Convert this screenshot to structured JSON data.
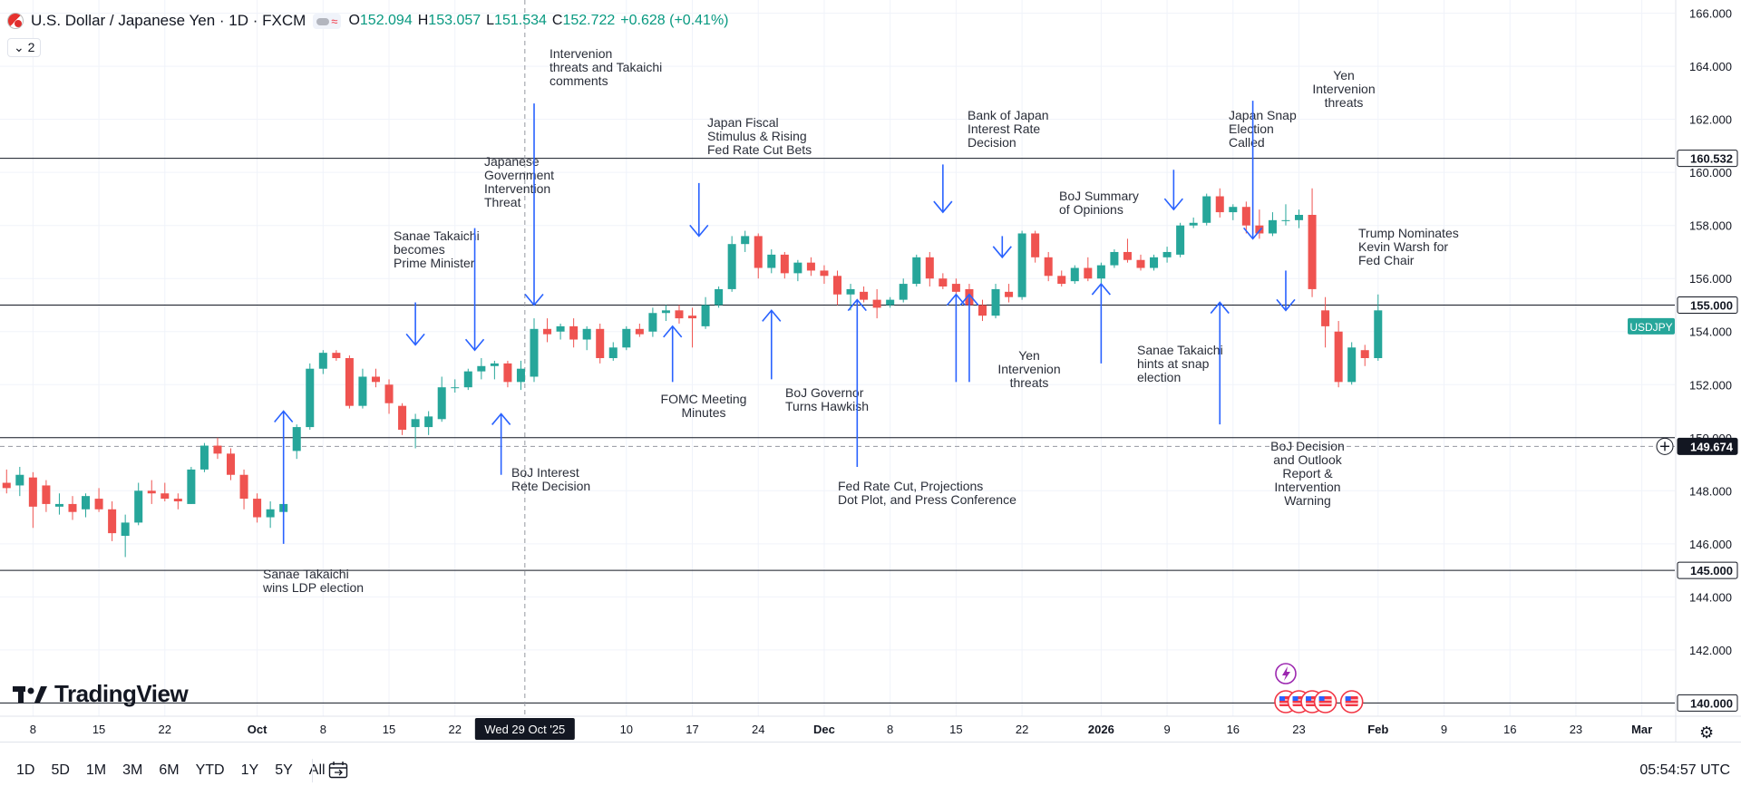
{
  "header": {
    "symbol_title": "U.S. Dollar / Japanese Yen · 1D · FXCM",
    "open_label": "O",
    "open_value": "152.094",
    "high_label": "H",
    "high_value": "153.057",
    "low_label": "L",
    "low_value": "151.534",
    "close_label": "C",
    "close_value": "152.722",
    "change": "+0.628 (+0.41%)",
    "legend_count": "2",
    "flag_icon": "us-flag-icon",
    "wave_glyph": "≈"
  },
  "logo": {
    "text": "TradingView"
  },
  "toolbar": {
    "ranges": [
      "1D",
      "5D",
      "1M",
      "3M",
      "6M",
      "YTD",
      "1Y",
      "5Y",
      "All"
    ],
    "clock": "05:54:57 UTC",
    "calendar_icon": "calendar-icon",
    "settings_icon": "settings-icon"
  },
  "colors": {
    "up": "#26a69a",
    "down": "#ef5350",
    "annotation": "#2962ff",
    "hline": "#131722",
    "grid": "#f0f3fa",
    "badge_last": "#26a69a",
    "badge_dark": "#131722"
  },
  "chart_data": {
    "type": "candlestick",
    "symbol": "USDJPY",
    "x_ticks": [
      {
        "label": "8",
        "i": 2
      },
      {
        "label": "15",
        "i": 7
      },
      {
        "label": "22",
        "i": 12
      },
      {
        "label": "Oct",
        "i": 19
      },
      {
        "label": "8",
        "i": 24
      },
      {
        "label": "15",
        "i": 29
      },
      {
        "label": "22",
        "i": 34
      },
      {
        "label": "10",
        "i": 47
      },
      {
        "label": "17",
        "i": 52
      },
      {
        "label": "24",
        "i": 57
      },
      {
        "label": "Dec",
        "i": 62
      },
      {
        "label": "8",
        "i": 67
      },
      {
        "label": "15",
        "i": 72
      },
      {
        "label": "22",
        "i": 77
      },
      {
        "label": "2026",
        "i": 83
      },
      {
        "label": "9",
        "i": 88
      },
      {
        "label": "16",
        "i": 93
      },
      {
        "label": "23",
        "i": 98
      },
      {
        "label": "Feb",
        "i": 104
      },
      {
        "label": "9",
        "i": 109
      },
      {
        "label": "16",
        "i": 114
      },
      {
        "label": "23",
        "i": 119
      },
      {
        "label": "Mar",
        "i": 124
      }
    ],
    "crosshair": {
      "i": 39.3,
      "label": "Wed 29 Oct '25",
      "price": 149.674
    },
    "y_ticks": [
      142,
      144,
      146,
      148,
      150,
      152,
      154,
      156,
      158,
      160,
      162,
      164,
      166
    ],
    "ylim": [
      139.5,
      166.5
    ],
    "xlim": [
      -0.5,
      126.5
    ],
    "horizontal_lines": [
      160.532,
      155.0,
      150.0,
      145.0,
      140.0
    ],
    "price_labels": [
      {
        "value": 160.532,
        "text": "160.532",
        "style": "line"
      },
      {
        "value": 155.0,
        "text": "155.000",
        "style": "line"
      },
      {
        "value": 145.0,
        "text": "145.000",
        "style": "line"
      },
      {
        "value": 140.0,
        "text": "140.000",
        "style": "line"
      },
      {
        "value": 149.674,
        "text": "149.674",
        "style": "dark"
      }
    ],
    "symbol_badge": {
      "text": "USDJPY",
      "value": 154.2
    },
    "candles": [
      {
        "o": 148.3,
        "h": 148.8,
        "l": 147.9,
        "c": 148.1
      },
      {
        "o": 148.2,
        "h": 148.9,
        "l": 147.8,
        "c": 148.6
      },
      {
        "o": 148.5,
        "h": 148.7,
        "l": 146.6,
        "c": 147.4
      },
      {
        "o": 148.2,
        "h": 148.4,
        "l": 147.2,
        "c": 147.5
      },
      {
        "o": 147.4,
        "h": 147.9,
        "l": 147.1,
        "c": 147.5
      },
      {
        "o": 147.5,
        "h": 147.8,
        "l": 146.9,
        "c": 147.2
      },
      {
        "o": 147.3,
        "h": 147.9,
        "l": 147.0,
        "c": 147.8
      },
      {
        "o": 147.7,
        "h": 148.1,
        "l": 147.2,
        "c": 147.3
      },
      {
        "o": 147.3,
        "h": 147.6,
        "l": 146.1,
        "c": 146.4
      },
      {
        "o": 146.3,
        "h": 147.1,
        "l": 145.5,
        "c": 146.8
      },
      {
        "o": 146.8,
        "h": 148.3,
        "l": 146.7,
        "c": 148.0
      },
      {
        "o": 148.0,
        "h": 148.4,
        "l": 147.5,
        "c": 147.9
      },
      {
        "o": 147.9,
        "h": 148.3,
        "l": 147.6,
        "c": 147.7
      },
      {
        "o": 147.7,
        "h": 147.9,
        "l": 147.3,
        "c": 147.6
      },
      {
        "o": 147.5,
        "h": 148.9,
        "l": 147.5,
        "c": 148.8
      },
      {
        "o": 148.8,
        "h": 149.8,
        "l": 148.7,
        "c": 149.7
      },
      {
        "o": 149.7,
        "h": 150.0,
        "l": 149.2,
        "c": 149.4
      },
      {
        "o": 149.4,
        "h": 149.6,
        "l": 148.4,
        "c": 148.6
      },
      {
        "o": 148.6,
        "h": 148.8,
        "l": 147.3,
        "c": 147.7
      },
      {
        "o": 147.7,
        "h": 147.9,
        "l": 146.8,
        "c": 147.0
      },
      {
        "o": 147.0,
        "h": 147.6,
        "l": 146.6,
        "c": 147.3
      },
      {
        "o": 147.2,
        "h": 147.9,
        "l": 147.0,
        "c": 147.5
      },
      {
        "o": 149.5,
        "h": 150.5,
        "l": 149.2,
        "c": 150.4
      },
      {
        "o": 150.4,
        "h": 152.8,
        "l": 150.3,
        "c": 152.6
      },
      {
        "o": 152.6,
        "h": 153.3,
        "l": 152.4,
        "c": 153.2
      },
      {
        "o": 153.2,
        "h": 153.3,
        "l": 152.9,
        "c": 153.0
      },
      {
        "o": 153.0,
        "h": 153.1,
        "l": 151.1,
        "c": 151.2
      },
      {
        "o": 151.2,
        "h": 152.6,
        "l": 151.1,
        "c": 152.3
      },
      {
        "o": 152.3,
        "h": 152.6,
        "l": 151.9,
        "c": 152.1
      },
      {
        "o": 152.0,
        "h": 152.2,
        "l": 150.9,
        "c": 151.3
      },
      {
        "o": 151.2,
        "h": 151.3,
        "l": 150.1,
        "c": 150.3
      },
      {
        "o": 150.4,
        "h": 150.9,
        "l": 149.6,
        "c": 150.7
      },
      {
        "o": 150.4,
        "h": 151.0,
        "l": 150.1,
        "c": 150.8
      },
      {
        "o": 150.7,
        "h": 152.3,
        "l": 150.6,
        "c": 151.9
      },
      {
        "o": 151.9,
        "h": 152.2,
        "l": 151.7,
        "c": 151.9
      },
      {
        "o": 151.9,
        "h": 152.6,
        "l": 151.8,
        "c": 152.5
      },
      {
        "o": 152.5,
        "h": 153.0,
        "l": 152.2,
        "c": 152.7
      },
      {
        "o": 152.7,
        "h": 152.9,
        "l": 152.2,
        "c": 152.8
      },
      {
        "o": 152.8,
        "h": 152.9,
        "l": 151.9,
        "c": 152.1
      },
      {
        "o": 152.1,
        "h": 152.9,
        "l": 151.8,
        "c": 152.6
      },
      {
        "o": 152.3,
        "h": 154.5,
        "l": 152.1,
        "c": 154.1
      },
      {
        "o": 154.1,
        "h": 154.5,
        "l": 153.6,
        "c": 153.9
      },
      {
        "o": 154.0,
        "h": 154.3,
        "l": 153.7,
        "c": 154.2
      },
      {
        "o": 154.2,
        "h": 154.5,
        "l": 153.4,
        "c": 153.7
      },
      {
        "o": 153.7,
        "h": 154.2,
        "l": 153.3,
        "c": 154.1
      },
      {
        "o": 154.1,
        "h": 154.3,
        "l": 152.8,
        "c": 153.0
      },
      {
        "o": 153.0,
        "h": 153.6,
        "l": 152.9,
        "c": 153.4
      },
      {
        "o": 153.4,
        "h": 154.2,
        "l": 153.3,
        "c": 154.1
      },
      {
        "o": 154.1,
        "h": 154.3,
        "l": 153.8,
        "c": 153.9
      },
      {
        "o": 154.0,
        "h": 154.9,
        "l": 153.8,
        "c": 154.7
      },
      {
        "o": 154.7,
        "h": 155.0,
        "l": 154.4,
        "c": 154.8
      },
      {
        "o": 154.8,
        "h": 155.0,
        "l": 154.3,
        "c": 154.5
      },
      {
        "o": 154.6,
        "h": 154.9,
        "l": 153.4,
        "c": 154.5
      },
      {
        "o": 154.2,
        "h": 155.3,
        "l": 154.1,
        "c": 155.0
      },
      {
        "o": 155.0,
        "h": 155.7,
        "l": 154.9,
        "c": 155.6
      },
      {
        "o": 155.6,
        "h": 157.6,
        "l": 155.5,
        "c": 157.3
      },
      {
        "o": 157.3,
        "h": 157.8,
        "l": 157.0,
        "c": 157.6
      },
      {
        "o": 157.6,
        "h": 157.7,
        "l": 156.0,
        "c": 156.4
      },
      {
        "o": 156.4,
        "h": 157.1,
        "l": 156.2,
        "c": 156.9
      },
      {
        "o": 156.9,
        "h": 157.0,
        "l": 156.0,
        "c": 156.2
      },
      {
        "o": 156.2,
        "h": 156.7,
        "l": 155.9,
        "c": 156.6
      },
      {
        "o": 156.6,
        "h": 156.8,
        "l": 156.1,
        "c": 156.3
      },
      {
        "o": 156.3,
        "h": 156.5,
        "l": 155.8,
        "c": 156.1
      },
      {
        "o": 156.1,
        "h": 156.3,
        "l": 155.0,
        "c": 155.4
      },
      {
        "o": 155.4,
        "h": 155.8,
        "l": 154.8,
        "c": 155.6
      },
      {
        "o": 155.5,
        "h": 155.7,
        "l": 155.1,
        "c": 155.2
      },
      {
        "o": 155.2,
        "h": 155.6,
        "l": 154.5,
        "c": 154.9
      },
      {
        "o": 155.0,
        "h": 155.3,
        "l": 154.9,
        "c": 155.2
      },
      {
        "o": 155.2,
        "h": 156.0,
        "l": 155.1,
        "c": 155.8
      },
      {
        "o": 155.8,
        "h": 156.9,
        "l": 155.7,
        "c": 156.8
      },
      {
        "o": 156.8,
        "h": 157.0,
        "l": 155.7,
        "c": 156.0
      },
      {
        "o": 156.0,
        "h": 156.2,
        "l": 155.6,
        "c": 155.7
      },
      {
        "o": 155.8,
        "h": 156.0,
        "l": 155.4,
        "c": 155.5
      },
      {
        "o": 155.6,
        "h": 155.8,
        "l": 154.8,
        "c": 155.0
      },
      {
        "o": 155.0,
        "h": 155.2,
        "l": 154.4,
        "c": 154.6
      },
      {
        "o": 154.6,
        "h": 155.8,
        "l": 154.5,
        "c": 155.6
      },
      {
        "o": 155.5,
        "h": 155.8,
        "l": 155.1,
        "c": 155.3
      },
      {
        "o": 155.3,
        "h": 157.8,
        "l": 155.2,
        "c": 157.7
      },
      {
        "o": 157.7,
        "h": 157.8,
        "l": 156.6,
        "c": 156.8
      },
      {
        "o": 156.8,
        "h": 157.0,
        "l": 155.9,
        "c": 156.1
      },
      {
        "o": 156.1,
        "h": 156.3,
        "l": 155.7,
        "c": 155.8
      },
      {
        "o": 155.9,
        "h": 156.5,
        "l": 155.8,
        "c": 156.4
      },
      {
        "o": 156.4,
        "h": 156.8,
        "l": 155.9,
        "c": 156.0
      },
      {
        "o": 156.0,
        "h": 156.6,
        "l": 155.7,
        "c": 156.5
      },
      {
        "o": 156.5,
        "h": 157.1,
        "l": 156.4,
        "c": 157.0
      },
      {
        "o": 157.0,
        "h": 157.5,
        "l": 156.6,
        "c": 156.7
      },
      {
        "o": 156.7,
        "h": 156.9,
        "l": 156.3,
        "c": 156.4
      },
      {
        "o": 156.4,
        "h": 156.9,
        "l": 156.3,
        "c": 156.8
      },
      {
        "o": 156.8,
        "h": 157.2,
        "l": 156.6,
        "c": 157.0
      },
      {
        "o": 156.9,
        "h": 158.1,
        "l": 156.8,
        "c": 158.0
      },
      {
        "o": 158.0,
        "h": 158.3,
        "l": 157.9,
        "c": 158.1
      },
      {
        "o": 158.1,
        "h": 159.2,
        "l": 158.0,
        "c": 159.1
      },
      {
        "o": 159.1,
        "h": 159.4,
        "l": 158.3,
        "c": 158.5
      },
      {
        "o": 158.5,
        "h": 158.8,
        "l": 158.2,
        "c": 158.7
      },
      {
        "o": 158.7,
        "h": 158.9,
        "l": 157.7,
        "c": 158.0
      },
      {
        "o": 158.0,
        "h": 158.6,
        "l": 157.5,
        "c": 157.7
      },
      {
        "o": 157.7,
        "h": 158.5,
        "l": 157.6,
        "c": 158.2
      },
      {
        "o": 158.2,
        "h": 158.8,
        "l": 158.0,
        "c": 158.2
      },
      {
        "o": 158.2,
        "h": 158.6,
        "l": 157.9,
        "c": 158.4
      },
      {
        "o": 158.4,
        "h": 159.4,
        "l": 155.3,
        "c": 155.6
      },
      {
        "o": 154.8,
        "h": 155.3,
        "l": 153.4,
        "c": 154.2
      },
      {
        "o": 154.0,
        "h": 154.4,
        "l": 151.9,
        "c": 152.1
      },
      {
        "o": 152.1,
        "h": 153.6,
        "l": 152.0,
        "c": 153.4
      },
      {
        "o": 153.3,
        "h": 153.5,
        "l": 152.7,
        "c": 153.0
      },
      {
        "o": 153.0,
        "h": 155.4,
        "l": 152.9,
        "c": 154.8
      }
    ],
    "annotations": [
      {
        "i": 21,
        "tip": 151.0,
        "tail": 146.0,
        "dir": "up",
        "lines": [
          "Sanae Takaichi",
          "wins LDP election"
        ],
        "lx": 290,
        "ly": 638,
        "align": "start"
      },
      {
        "i": 31,
        "tip": 153.5,
        "tail": 155.1,
        "dir": "down",
        "lines": [
          "Sanae Takaichi",
          "becomes",
          "Prime Minister"
        ],
        "lx": 434,
        "ly": 265,
        "align": "start"
      },
      {
        "i": 35.5,
        "tip": 153.3,
        "tail": 157.9,
        "dir": "down",
        "lines": [
          "Japanese",
          "Government",
          "Intervention",
          "Threat"
        ],
        "lx": 534,
        "ly": 183,
        "align": "start"
      },
      {
        "i": 37.5,
        "tip": 150.9,
        "tail": 148.6,
        "dir": "up",
        "lines": [
          "BoJ Interest",
          "Rete Decision"
        ],
        "lx": 564,
        "ly": 526,
        "align": "start"
      },
      {
        "i": 40,
        "tip": 155.0,
        "tail": 162.6,
        "dir": "down",
        "lines": [
          "Intervenion",
          "threats and Takaichi",
          "comments"
        ],
        "lx": 606,
        "ly": 64,
        "align": "start"
      },
      {
        "i": 50.5,
        "tip": 154.2,
        "tail": 152.1,
        "dir": "up",
        "lines": [
          "FOMC Meeting",
          "Minutes"
        ],
        "lx": 776,
        "ly": 445,
        "align": "middle"
      },
      {
        "i": 52.5,
        "tip": 157.6,
        "tail": 159.6,
        "dir": "down",
        "lines": [
          "Japan Fiscal",
          "Stimulus & Rising",
          "Fed Rate Cut Bets"
        ],
        "lx": 780,
        "ly": 140,
        "align": "start"
      },
      {
        "i": 58,
        "tip": 154.8,
        "tail": 152.2,
        "dir": "up",
        "lines": [
          "BoJ Governor",
          "Turns Hawkish"
        ],
        "lx": 866,
        "ly": 438,
        "align": "start"
      },
      {
        "i": 64.5,
        "tip": 155.2,
        "tail": 148.9,
        "dir": "up",
        "lines": [
          "Fed Rate Cut, Projections",
          "Dot Plot, and Press Conference"
        ],
        "lx": 924,
        "ly": 541,
        "align": "start"
      },
      {
        "i": 71,
        "tip": 158.5,
        "tail": 160.3,
        "dir": "down",
        "lines": [
          "Bank of Japan",
          "Interest Rate",
          "Decision"
        ],
        "lx": 1067,
        "ly": 132,
        "align": "start"
      },
      {
        "i": 72,
        "tip": 155.4,
        "tail": 152.1,
        "dir": "up",
        "lines": [],
        "lx": 0,
        "ly": 0,
        "align": "start"
      },
      {
        "i": 73,
        "tip": 155.4,
        "tail": 152.1,
        "dir": "up",
        "lines": [
          "Yen",
          "Intervenion",
          "threats"
        ],
        "lx": 1135,
        "ly": 397,
        "align": "middle"
      },
      {
        "i": 75.5,
        "tip": 156.8,
        "tail": 157.6,
        "dir": "down",
        "lines": [
          "BoJ Summary",
          "of Opinions"
        ],
        "lx": 1168,
        "ly": 221,
        "align": "start"
      },
      {
        "i": 83,
        "tip": 155.8,
        "tail": 152.8,
        "dir": "up",
        "lines": [
          "Sanae Takaichi",
          "hints at snap",
          "election"
        ],
        "lx": 1254,
        "ly": 391,
        "align": "start"
      },
      {
        "i": 88.5,
        "tip": 158.6,
        "tail": 160.1,
        "dir": "down",
        "lines": [
          "Japan Snap",
          "Election",
          "Called"
        ],
        "lx": 1355,
        "ly": 132,
        "align": "start"
      },
      {
        "i": 92,
        "tip": 155.1,
        "tail": 150.5,
        "dir": "up",
        "lines": [
          "BoJ Decision",
          "and Outlook",
          "Report &",
          "Intervention",
          "Warning"
        ],
        "lx": 1442,
        "ly": 497,
        "align": "middle"
      },
      {
        "i": 94.5,
        "tip": 157.5,
        "tail": 162.7,
        "dir": "down",
        "lines": [
          "Yen",
          "Intervenion",
          "threats"
        ],
        "lx": 1482,
        "ly": 88,
        "align": "middle"
      },
      {
        "i": 97,
        "tip": 154.8,
        "tail": 156.3,
        "dir": "down",
        "lines": [
          "Trump Nominates",
          "Kevin Warsh for",
          "Fed Chair"
        ],
        "lx": 1498,
        "ly": 262,
        "align": "start"
      }
    ],
    "events": [
      {
        "i": 97,
        "kind": "lightning"
      },
      {
        "i": 97,
        "kind": "flag"
      },
      {
        "i": 98,
        "kind": "flag"
      },
      {
        "i": 99,
        "kind": "flag"
      },
      {
        "i": 100,
        "kind": "flag"
      },
      {
        "i": 102,
        "kind": "flag"
      }
    ]
  }
}
